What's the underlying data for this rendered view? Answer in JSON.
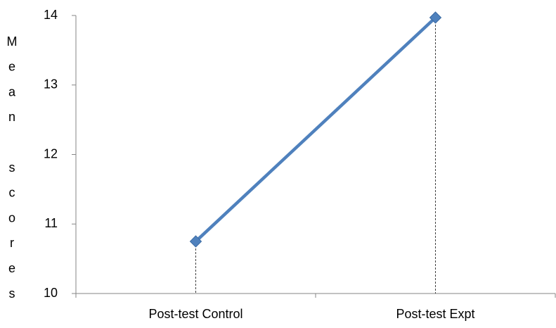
{
  "chart_data": {
    "type": "line",
    "categories": [
      "Post-test Control",
      "Post-test Expt"
    ],
    "series": [
      {
        "values": [
          10.75,
          13.97
        ],
        "color": "#4f81bd",
        "marker": "diamond"
      }
    ],
    "ylabel": "Mean scores",
    "ylim": [
      10,
      14
    ],
    "yticks": [
      10,
      11,
      12,
      13,
      14
    ],
    "drop_lines": true,
    "grid": false,
    "legend": "none"
  }
}
